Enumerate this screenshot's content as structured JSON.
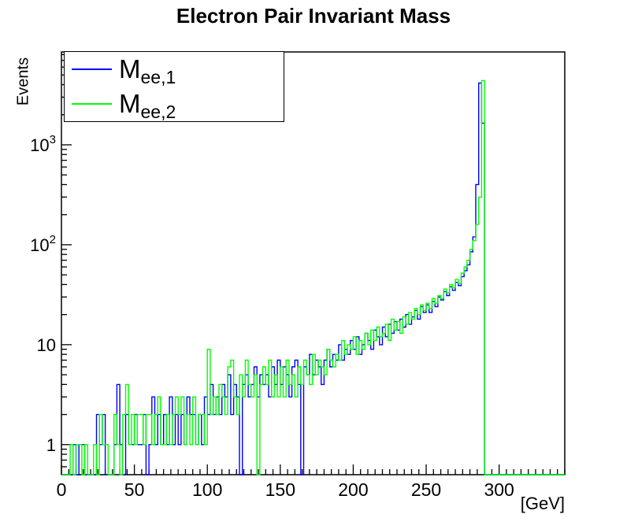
{
  "title": "Electron Pair Invariant Mass",
  "axes": {
    "x": {
      "label": "[GeV]",
      "min": 0,
      "max": 345,
      "major_tick_step": 50,
      "minor_tick_step": 5,
      "tick_values": [
        0,
        50,
        100,
        150,
        200,
        250,
        300
      ],
      "tick_labels": [
        "0",
        "50",
        "100",
        "150",
        "200",
        "250",
        "300"
      ]
    },
    "y": {
      "label": "Events",
      "scale": "log",
      "min": 0.5,
      "max": 8500,
      "tick_values": [
        1,
        10,
        100,
        1000
      ],
      "tick_labels": [
        {
          "base": "1",
          "exp": ""
        },
        {
          "base": "10",
          "exp": ""
        },
        {
          "base": "10",
          "exp": "2"
        },
        {
          "base": "10",
          "exp": "3"
        }
      ]
    }
  },
  "legend": {
    "entries": [
      {
        "label_main": "M",
        "label_sub": "ee,1",
        "color": "#0000ff"
      },
      {
        "label_main": "M",
        "label_sub": "ee,2",
        "color": "#00ff00"
      }
    ]
  },
  "frame_color": "#000000",
  "background_color": "#ffffff",
  "chart_data": {
    "type": "histogram-step",
    "title": "Electron Pair Invariant Mass",
    "xlabel": "[GeV]",
    "ylabel": "Events",
    "ylog": true,
    "xlim": [
      0,
      345
    ],
    "ylim": [
      0.5,
      8500
    ],
    "grid": false,
    "legend_position": "top-left",
    "bin_start": 0,
    "bin_width": 2,
    "series": [
      {
        "name": "Mee,1",
        "color": "#0000ff",
        "values": [
          0,
          0,
          0,
          0,
          1,
          0,
          1,
          1,
          0,
          0,
          0,
          0,
          2,
          1,
          2,
          0,
          0,
          0,
          1,
          4,
          1,
          0,
          2,
          1,
          1,
          2,
          1,
          1,
          2,
          0,
          1,
          3,
          1,
          2,
          1,
          2,
          1,
          3,
          1,
          2,
          1,
          2,
          1,
          3,
          2,
          2,
          1,
          2,
          1,
          3,
          2,
          4,
          2,
          3,
          2,
          4,
          3,
          5,
          2,
          4,
          3,
          0,
          4,
          5,
          3,
          4,
          6,
          3,
          5,
          4,
          5,
          3,
          6,
          4,
          7,
          4,
          6,
          5,
          3,
          6,
          7,
          4,
          0,
          6,
          5,
          8,
          5,
          7,
          6,
          4,
          7,
          9,
          6,
          8,
          7,
          10,
          7,
          9,
          8,
          11,
          9,
          12,
          8,
          10,
          13,
          11,
          9,
          14,
          12,
          10,
          15,
          12,
          16,
          13,
          17,
          14,
          18,
          15,
          20,
          16,
          19,
          22,
          18,
          24,
          21,
          25,
          21,
          27,
          24,
          30,
          28,
          34,
          31,
          38,
          35,
          42,
          39,
          48,
          55,
          63,
          85,
          120,
          400,
          4150,
          1650,
          0,
          0,
          0,
          0,
          0,
          0,
          0,
          0,
          0,
          0,
          0,
          0,
          0,
          0,
          0,
          0,
          0,
          0,
          0,
          0,
          0,
          0,
          0,
          0,
          0,
          0,
          0,
          0
        ]
      },
      {
        "name": "Mee,2",
        "color": "#00ff00",
        "values": [
          0,
          0,
          0,
          1,
          0,
          1,
          1,
          0,
          1,
          0,
          0,
          1,
          0,
          2,
          1,
          1,
          0,
          0,
          2,
          1,
          0,
          2,
          4,
          1,
          2,
          1,
          2,
          2,
          1,
          2,
          2,
          1,
          2,
          3,
          1,
          1,
          2,
          1,
          2,
          3,
          2,
          3,
          1,
          2,
          1,
          3,
          1,
          2,
          2,
          1,
          9,
          2,
          3,
          2,
          4,
          3,
          2,
          6,
          7,
          3,
          2,
          5,
          3,
          7,
          4,
          3,
          5,
          0,
          4,
          6,
          4,
          7,
          3,
          5,
          3,
          6,
          3,
          7,
          4,
          5,
          3,
          6,
          4,
          7,
          5,
          4,
          8,
          5,
          7,
          6,
          5,
          9,
          7,
          6,
          8,
          7,
          11,
          8,
          10,
          9,
          12,
          8,
          11,
          9,
          13,
          10,
          14,
          11,
          15,
          12,
          13,
          16,
          11,
          18,
          14,
          17,
          13,
          19,
          16,
          21,
          18,
          23,
          20,
          25,
          22,
          26,
          23,
          29,
          26,
          31,
          29,
          36,
          33,
          40,
          37,
          45,
          41,
          52,
          60,
          70,
          90,
          110,
          160,
          300,
          4400,
          0,
          0,
          0,
          0,
          0,
          0,
          0,
          0,
          0,
          0,
          0,
          0,
          0,
          0,
          0,
          0,
          0,
          0,
          0,
          0,
          0,
          0,
          0,
          0,
          0,
          0,
          0,
          0
        ]
      }
    ]
  }
}
